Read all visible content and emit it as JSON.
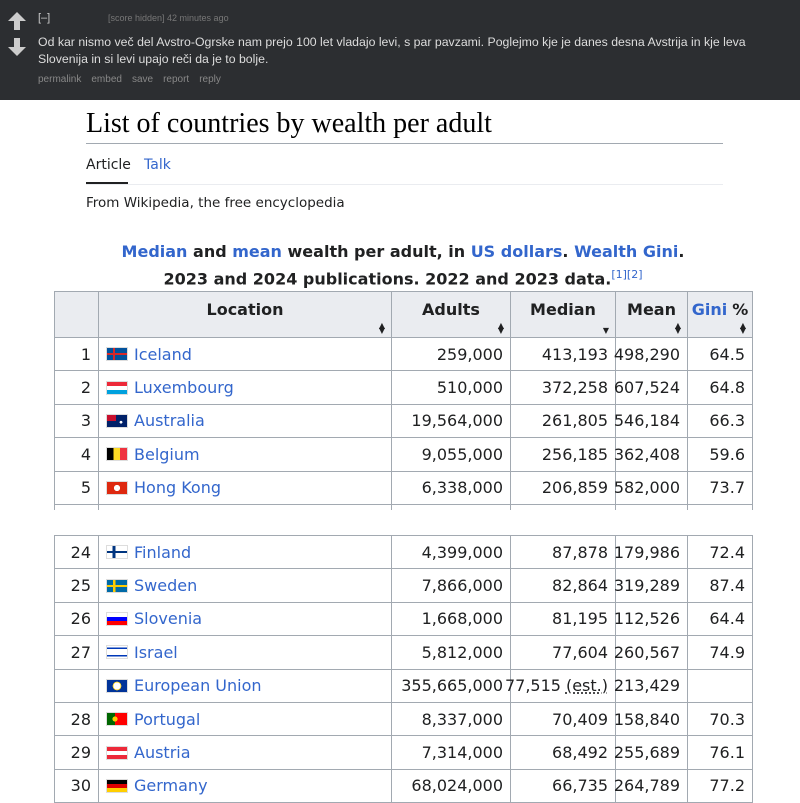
{
  "comment": {
    "toggle": "[–]",
    "meta": "[score hidden] 42 minutes ago",
    "body": "Od kar nismo več del Avstro-Ogrske nam prejo 100 let vladajo levi, s par pavzami. Poglejmo kje je danes desna Avstrija in kje leva Slovenija in si levi upajo reči da je to bolje.",
    "actions": [
      "permalink",
      "embed",
      "save",
      "report",
      "reply"
    ]
  },
  "article": {
    "title": "List of countries by wealth per adult",
    "tabs": [
      "Article",
      "Talk"
    ],
    "tagline": "From Wikipedia, the free encyclopedia",
    "caption": {
      "parts": [
        "Median",
        " and ",
        "mean",
        " wealth per adult, in ",
        "US dollars",
        ". ",
        "Wealth Gini",
        "."
      ],
      "line2": "2023 and 2024 publications. 2022 and 2023 data.",
      "refs": [
        "[1]",
        "[2]"
      ]
    },
    "table": {
      "headers": [
        "Location",
        "Adults",
        "Median",
        "Mean",
        "Gini",
        "%"
      ],
      "rows_top": [
        {
          "rank": 1,
          "location": "Iceland",
          "adults": "259,000",
          "median": "413,193",
          "mean": "498,290",
          "gini": 64.5
        },
        {
          "rank": 2,
          "location": "Luxembourg",
          "adults": "510,000",
          "median": "372,258",
          "mean": "607,524",
          "gini": 64.8
        },
        {
          "rank": 3,
          "location": "Australia",
          "adults": "19,564,000",
          "median": "261,805",
          "mean": "546,184",
          "gini": 66.3
        },
        {
          "rank": 4,
          "location": "Belgium",
          "adults": "9,055,000",
          "median": "256,185",
          "mean": "362,408",
          "gini": 59.6
        },
        {
          "rank": 5,
          "location": "Hong Kong",
          "adults": "6,338,000",
          "median": "206,859",
          "mean": "582,000",
          "gini": 73.7
        }
      ],
      "rows_bottom": [
        {
          "rank": 24,
          "location": "Finland",
          "adults": "4,399,000",
          "median": "87,878",
          "mean": "179,986",
          "gini": 72.4
        },
        {
          "rank": 25,
          "location": "Sweden",
          "adults": "7,866,000",
          "median": "82,864",
          "mean": "319,289",
          "gini": 87.4
        },
        {
          "rank": 26,
          "location": "Slovenia",
          "adults": "1,668,000",
          "median": "81,195",
          "mean": "112,526",
          "gini": 64.4
        },
        {
          "rank": 27,
          "location": "Israel",
          "adults": "5,812,000",
          "median": "77,604",
          "mean": "260,567",
          "gini": 74.9
        },
        {
          "rank": null,
          "location": "European Union",
          "adults": "355,665,000",
          "median": "77,515",
          "median_note": "(est.)",
          "mean": "213,429",
          "gini": null
        },
        {
          "rank": 28,
          "location": "Portugal",
          "adults": "8,337,000",
          "median": "70,409",
          "mean": "158,840",
          "gini": 70.3
        },
        {
          "rank": 29,
          "location": "Austria",
          "adults": "7,314,000",
          "median": "68,492",
          "mean": "255,689",
          "gini": 76.1
        },
        {
          "rank": 30,
          "location": "Germany",
          "adults": "68,024,000",
          "median": "66,735",
          "mean": "264,789",
          "gini": 77.2
        }
      ]
    }
  }
}
